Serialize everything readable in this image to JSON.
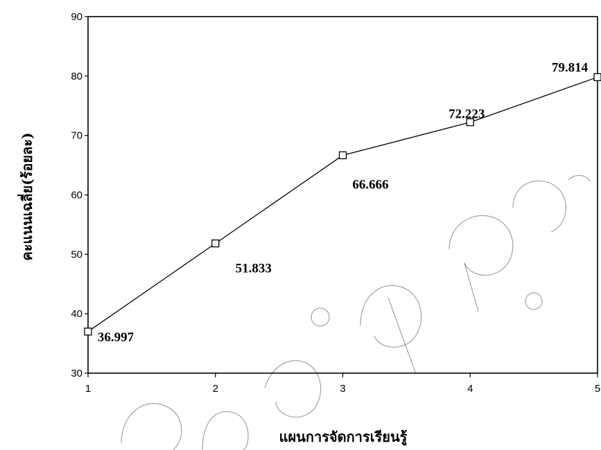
{
  "chart_data": {
    "type": "line",
    "title": "",
    "xlabel": "แผนการจัดการเรียนรู้",
    "ylabel": "คะแนนเฉลี่ย(ร้อยละ)",
    "x": [
      1,
      2,
      3,
      4,
      5
    ],
    "xticks": [
      "1",
      "2",
      "3",
      "4",
      "5"
    ],
    "xlim": [
      1,
      5
    ],
    "ylim": [
      30,
      90
    ],
    "yticks": [
      30,
      40,
      50,
      60,
      70,
      80,
      90
    ],
    "grid": false,
    "legend": "none",
    "marker": "square",
    "series": [
      {
        "values": [
          36.997,
          51.833,
          66.666,
          72.223,
          79.814
        ],
        "labels": [
          "36.997",
          "51.833",
          "66.666",
          "72.223",
          "79.814"
        ],
        "color": "#000000"
      }
    ]
  }
}
